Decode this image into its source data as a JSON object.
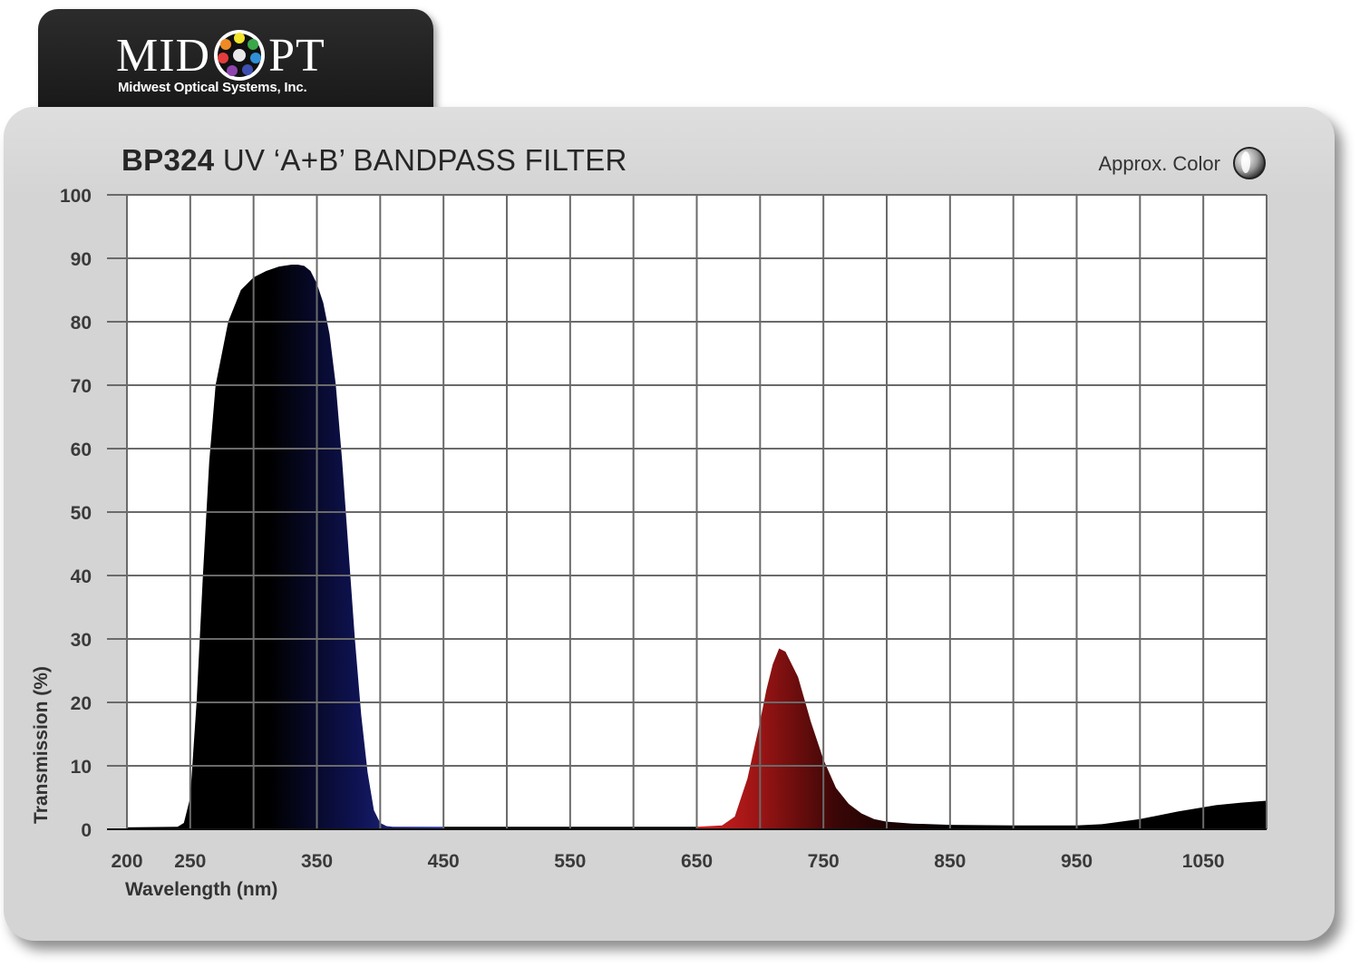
{
  "brand": {
    "name_left": "MID",
    "name_right": "PT",
    "subtitle": "Midwest Optical Systems, Inc."
  },
  "header": {
    "title_bold": "BP324",
    "title_rest": " UV ‘A+B’ BANDPASS FILTER",
    "approx_color_label": "Approx. Color"
  },
  "colors": {
    "panel": "#d4d4d4",
    "plot_background": "#ffffff",
    "grid": "#555555",
    "uv_fill_dark": "#000000",
    "uv_fill_blue": "#232c86",
    "red_fill": "#c41d1d",
    "ir_fill": "#000000"
  },
  "chart_data": {
    "type": "area",
    "title": "BP324 UV ‘A+B’ BANDPASS FILTER",
    "xlabel": "Wavelength (nm)",
    "ylabel": "Transmission (%)",
    "xlim": [
      200,
      1100
    ],
    "ylim": [
      0,
      100
    ],
    "x_ticks": [
      200,
      250,
      350,
      450,
      550,
      650,
      750,
      850,
      950,
      1050
    ],
    "y_ticks": [
      0,
      10,
      20,
      30,
      40,
      50,
      60,
      70,
      80,
      90,
      100
    ],
    "grid": true,
    "legend": "none",
    "series": [
      {
        "x": [
          200,
          240,
          245,
          250,
          255,
          260,
          265,
          270,
          280,
          290,
          300,
          310,
          320,
          330,
          335,
          340,
          345,
          350,
          355,
          360,
          365,
          370,
          375,
          380,
          385,
          390,
          395,
          400,
          405,
          410,
          450,
          550,
          650,
          670,
          680,
          690,
          700,
          705,
          710,
          715,
          720,
          730,
          740,
          750,
          760,
          770,
          780,
          790,
          800,
          820,
          850,
          900,
          950,
          970,
          1000,
          1030,
          1060,
          1080,
          1100
        ],
        "y": [
          0.3,
          0.4,
          1,
          5,
          20,
          40,
          58,
          70,
          80,
          85,
          87,
          88,
          88.7,
          89,
          89,
          88.8,
          88,
          86,
          83,
          78,
          70,
          58,
          44,
          30,
          18,
          9,
          3,
          1,
          0.5,
          0.4,
          0.4,
          0.4,
          0.4,
          0.6,
          2,
          8,
          17,
          22,
          26,
          28.5,
          28,
          24,
          17,
          11,
          6.5,
          4,
          2.5,
          1.6,
          1.2,
          0.9,
          0.7,
          0.6,
          0.6,
          0.8,
          1.6,
          2.8,
          3.8,
          4.2,
          4.5
        ]
      }
    ]
  }
}
